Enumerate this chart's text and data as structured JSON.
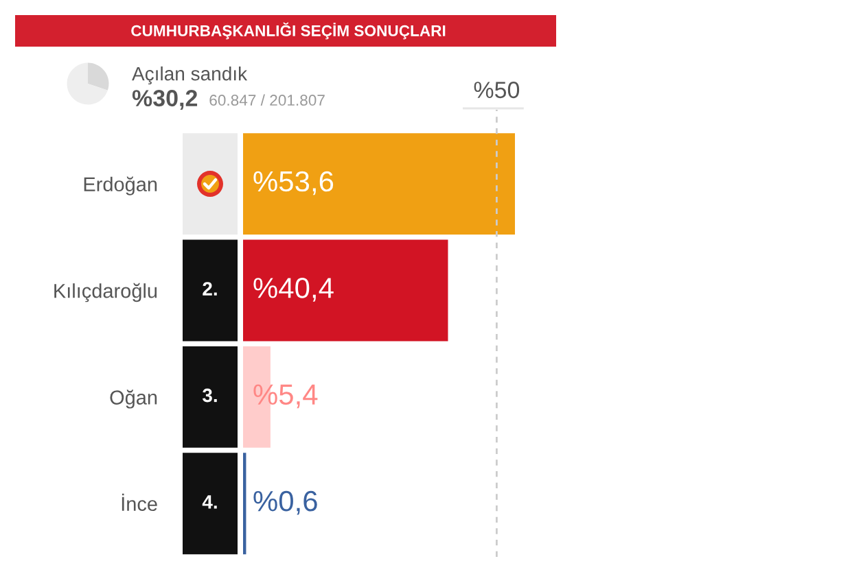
{
  "chart_data": [
    {
      "type": "pie",
      "title": "Açılan sandık",
      "categories": [
        null,
        null
      ],
      "values": [
        30.2,
        69.8
      ],
      "colors": [
        "#d9d9d9",
        "#eeeeee"
      ],
      "value_labels": [
        "%30,2",
        null
      ],
      "annotations": [
        "60.847 / 201.807"
      ]
    },
    {
      "type": "bar",
      "orientation": "horizontal",
      "title": "CUMHURBAŞKANLIĞI SEÇİM SONUÇLARI",
      "categories": [
        "Erdoğan",
        "Kılıçdaroğlu",
        "Oğan",
        "İnce"
      ],
      "values": [
        53.6,
        40.4,
        5.4,
        0.6
      ],
      "colors": [
        "#f0a013",
        "#d21424",
        "#ffcccb",
        "#3a62a0"
      ],
      "value_labels": [
        "%53,6",
        "%40,4",
        "%5,4",
        "%0,6"
      ],
      "ref_lines": [
        {
          "axis": "x",
          "value": 50,
          "label": "%50",
          "color": "#cccccc",
          "line_style": "dashed"
        }
      ],
      "annotations": [
        "2.",
        "3.",
        "4."
      ],
      "tick_labels": "y"
    }
  ]
}
